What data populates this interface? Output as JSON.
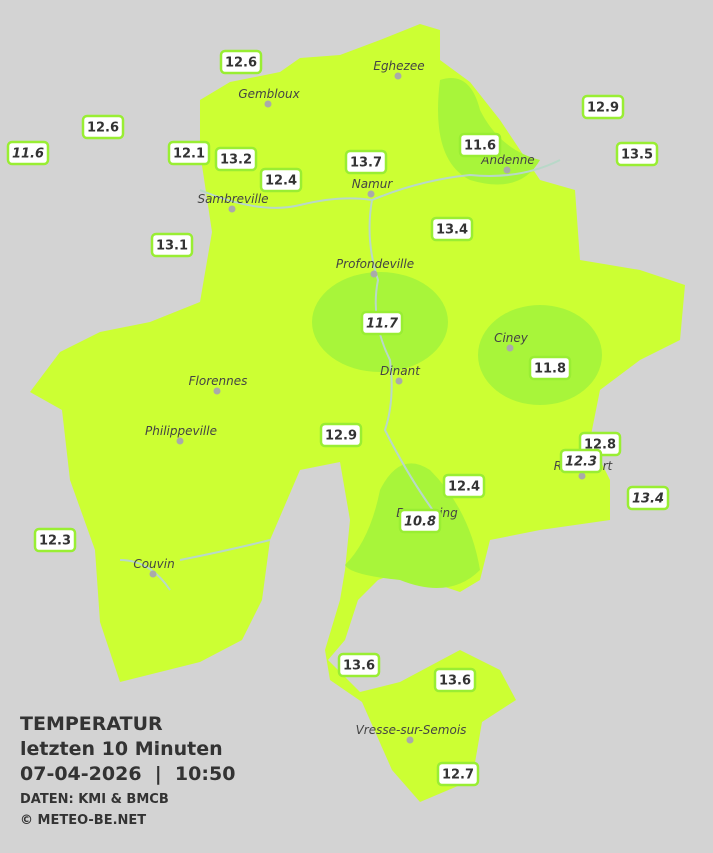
{
  "legend": {
    "title": "TEMPERATUR",
    "subtitle": "letzten 10 Minuten",
    "datetime": "07-04-2026  |  10:50",
    "source": "DATEN: KMI & BMCB",
    "copyright": "© METEO-BE.NET"
  },
  "cities": [
    "Eghezee",
    "Gembloux",
    "Andenne",
    "Namur",
    "Sambreville",
    "Profondeville",
    "Ciney",
    "Dinant",
    "Florennes",
    "Philippeville",
    "Rochefort",
    "Beauraing",
    "Couvin",
    "Vresse-sur-Semois"
  ],
  "stations": [
    {
      "value": 12.6,
      "italic": false
    },
    {
      "value": 12.6,
      "italic": false
    },
    {
      "value": 11.6,
      "italic": true
    },
    {
      "value": 12.1,
      "italic": false
    },
    {
      "value": 13.2,
      "italic": false
    },
    {
      "value": 12.4,
      "italic": false
    },
    {
      "value": 13.7,
      "italic": false
    },
    {
      "value": 11.6,
      "italic": false
    },
    {
      "value": 12.9,
      "italic": false
    },
    {
      "value": 13.5,
      "italic": false
    },
    {
      "value": 13.4,
      "italic": false
    },
    {
      "value": 13.1,
      "italic": false
    },
    {
      "value": 11.7,
      "italic": true
    },
    {
      "value": 11.8,
      "italic": false
    },
    {
      "value": 12.9,
      "italic": false
    },
    {
      "value": 12.8,
      "italic": false
    },
    {
      "value": 12.3,
      "italic": true
    },
    {
      "value": 12.4,
      "italic": false
    },
    {
      "value": 13.4,
      "italic": true
    },
    {
      "value": 10.8,
      "italic": true
    },
    {
      "value": 12.3,
      "italic": false
    },
    {
      "value": 13.6,
      "italic": false
    },
    {
      "value": 13.6,
      "italic": false
    },
    {
      "value": 12.7,
      "italic": false
    }
  ]
}
